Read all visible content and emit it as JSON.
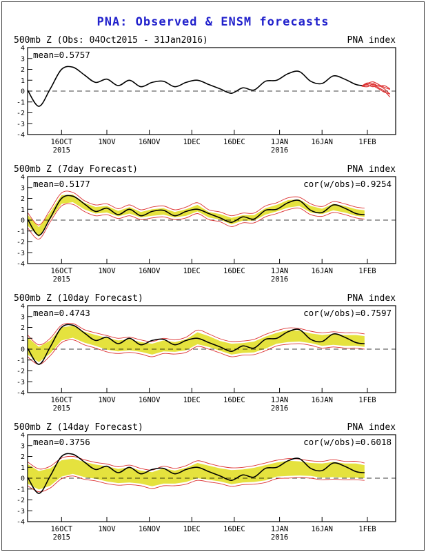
{
  "title": "PNA: Observed & ENSM forecasts",
  "colors": {
    "title": "#2222cc",
    "observed": "#000000",
    "red": "#dd3333",
    "band": "#e5e23e",
    "axis": "#000000"
  },
  "chart_data": {
    "type": "line",
    "x_unit": "days since 04Oct2015",
    "envelope_extra": 0.2,
    "axis": {
      "y_min": -4,
      "y_max": 4,
      "y_ticks": [
        4,
        3,
        2,
        1,
        0,
        -1,
        -2,
        -3,
        -4
      ],
      "x_min": 0,
      "x_max": 130,
      "x_ticks": [
        {
          "day": 12,
          "label": "16OCT",
          "sub": "2015"
        },
        {
          "day": 28,
          "label": "1NOV"
        },
        {
          "day": 43,
          "label": "16NOV"
        },
        {
          "day": 58,
          "label": "1DEC"
        },
        {
          "day": 73,
          "label": "16DEC"
        },
        {
          "day": 89,
          "label": "1JAN",
          "sub": "2016"
        },
        {
          "day": 104,
          "label": "16JAN"
        },
        {
          "day": 120,
          "label": "1FEB"
        }
      ]
    },
    "days": [
      0,
      4,
      8,
      12,
      16,
      20,
      24,
      28,
      32,
      36,
      40,
      44,
      48,
      52,
      56,
      60,
      64,
      68,
      72,
      76,
      80,
      84,
      88,
      92,
      96,
      100,
      104,
      108,
      112,
      116,
      119
    ],
    "observed": [
      0.1,
      -1.4,
      0.2,
      2.0,
      2.2,
      1.5,
      0.8,
      1.1,
      0.5,
      1.0,
      0.4,
      0.8,
      0.9,
      0.4,
      0.8,
      1.0,
      0.6,
      0.2,
      -0.2,
      0.3,
      0.1,
      0.9,
      1.0,
      1.6,
      1.8,
      0.9,
      0.7,
      1.4,
      1.1,
      0.6,
      0.5
    ],
    "panels": [
      {
        "title_left": "500mb Z (Obs: 04Oct2015 - 31Jan2016)",
        "title_right": "PNA index",
        "mean_label": "mean=0.5757",
        "members": [
          {
            "x": [
              118,
              120,
              122,
              124,
              126,
              128
            ],
            "y": [
              0.45,
              0.7,
              0.85,
              0.6,
              0.35,
              0.15
            ]
          },
          {
            "x": [
              118,
              120,
              122,
              124,
              126,
              128
            ],
            "y": [
              0.45,
              0.55,
              0.4,
              0.5,
              0.2,
              -0.3
            ]
          },
          {
            "x": [
              118,
              120,
              122,
              124,
              126,
              128
            ],
            "y": [
              0.45,
              0.4,
              0.6,
              0.3,
              0.0,
              -0.55
            ]
          },
          {
            "x": [
              118,
              120,
              122,
              124,
              126,
              128
            ],
            "y": [
              0.45,
              0.75,
              0.5,
              0.2,
              -0.1,
              -0.25
            ]
          },
          {
            "x": [
              118,
              120,
              122,
              124,
              126,
              128
            ],
            "y": [
              0.45,
              0.6,
              0.7,
              0.45,
              0.5,
              0.2
            ]
          }
        ]
      },
      {
        "title_left": "500mb Z (7day Forecast)",
        "title_right": "PNA index",
        "mean_label": "mean=0.5177",
        "cor_label": "cor(w/obs)=0.9254",
        "center": [
          0.0,
          -1.1,
          0.4,
          1.9,
          2.0,
          1.3,
          0.9,
          1.0,
          0.6,
          0.9,
          0.5,
          0.7,
          0.8,
          0.5,
          0.7,
          1.1,
          0.5,
          0.3,
          -0.1,
          0.2,
          0.2,
          0.8,
          1.1,
          1.5,
          1.6,
          1.0,
          0.8,
          1.2,
          1.0,
          0.7,
          0.6
        ],
        "spread": [
          0.5,
          0.45,
          0.35,
          0.4,
          0.35,
          0.3,
          0.3,
          0.3,
          0.25,
          0.3,
          0.25,
          0.3,
          0.3,
          0.25,
          0.3,
          0.3,
          0.25,
          0.25,
          0.3,
          0.25,
          0.25,
          0.3,
          0.3,
          0.35,
          0.3,
          0.3,
          0.25,
          0.3,
          0.3,
          0.3,
          0.3
        ]
      },
      {
        "title_left": "500mb Z (10day Forecast)",
        "title_right": "PNA index",
        "mean_label": "mean=0.4743",
        "cor_label": "cor(w/obs)=0.7597",
        "center": [
          0.3,
          -0.5,
          0.2,
          1.4,
          1.6,
          1.1,
          0.8,
          0.5,
          0.3,
          0.4,
          0.2,
          0.0,
          0.3,
          0.2,
          0.4,
          1.0,
          0.7,
          0.3,
          0.0,
          0.1,
          0.2,
          0.6,
          1.0,
          1.2,
          1.2,
          1.0,
          0.8,
          0.9,
          0.8,
          0.8,
          0.7
        ],
        "spread": [
          0.8,
          0.7,
          0.6,
          0.6,
          0.55,
          0.5,
          0.5,
          0.55,
          0.5,
          0.5,
          0.45,
          0.5,
          0.5,
          0.45,
          0.5,
          0.55,
          0.5,
          0.45,
          0.5,
          0.45,
          0.5,
          0.55,
          0.5,
          0.55,
          0.5,
          0.45,
          0.5,
          0.5,
          0.5,
          0.5,
          0.5
        ]
      },
      {
        "title_left": "500mb Z (14day Forecast)",
        "title_right": "PNA index",
        "mean_label": "mean=0.3756",
        "cor_label": "cor(w/obs)=0.6018",
        "center": [
          0.4,
          -0.2,
          0.1,
          0.9,
          1.1,
          0.8,
          0.6,
          0.4,
          0.2,
          0.3,
          0.1,
          -0.1,
          0.2,
          0.1,
          0.3,
          0.7,
          0.5,
          0.3,
          0.1,
          0.2,
          0.3,
          0.5,
          0.8,
          0.9,
          0.9,
          0.8,
          0.7,
          0.8,
          0.7,
          0.7,
          0.6
        ],
        "spread": [
          0.9,
          0.85,
          0.8,
          0.75,
          0.7,
          0.7,
          0.65,
          0.7,
          0.65,
          0.7,
          0.6,
          0.65,
          0.7,
          0.6,
          0.65,
          0.7,
          0.65,
          0.6,
          0.65,
          0.6,
          0.65,
          0.7,
          0.65,
          0.7,
          0.65,
          0.6,
          0.65,
          0.7,
          0.65,
          0.65,
          0.6
        ]
      }
    ]
  }
}
